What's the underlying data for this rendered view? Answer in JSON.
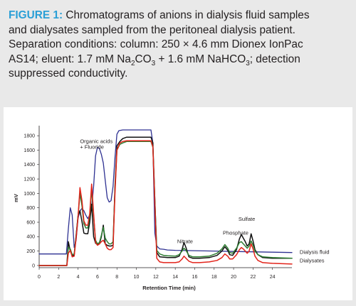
{
  "caption": {
    "label": "FIGURE 1:",
    "line1_rest": " Chromatograms of anions in dialysis fluid samples",
    "line2": "and dialysates sampled from the peritoneal dialysis patient.",
    "line3": "Separation conditions: column: 250 × 4.6 mm Dionex IonPac",
    "line4_a": "AS14; eluent: 1.7 mM Na",
    "line4_sub1": "2",
    "line4_b": "CO",
    "line4_sub2": "3",
    "line4_c": " + 1.6 mM NaHCO",
    "line4_sub3": "3",
    "line4_d": "; detection",
    "line5": "suppressed conductivity."
  },
  "colors": {
    "caption_label": "#2a9fd6",
    "panel_background": "#e9e9e9",
    "dialysis_fluid": "#2e3192",
    "black_trace": "#111111",
    "green_trace": "#2e7d32",
    "red_trace": "#e2231a"
  },
  "chart_data": {
    "type": "line",
    "title": "",
    "xlabel": "Retention Time (min)",
    "ylabel": "mV",
    "xlim": [
      0,
      26
    ],
    "ylim": [
      -30,
      1900
    ],
    "x_ticks": [
      0,
      2,
      4,
      6,
      8,
      10,
      12,
      14,
      16,
      18,
      20,
      22,
      24
    ],
    "y_ticks": [
      0,
      200,
      400,
      600,
      800,
      1000,
      1200,
      1400,
      1600,
      1800
    ],
    "grid": false,
    "annotations": [
      {
        "text": "Organic acids",
        "x": 4.2,
        "y": 1700
      },
      {
        "text": "+ Fluoride",
        "x": 4.2,
        "y": 1620
      },
      {
        "text": "Nitrate",
        "x": 14.2,
        "y": 310
      },
      {
        "text": "Phosphate",
        "x": 18.9,
        "y": 430
      },
      {
        "text": "Sulfate",
        "x": 20.5,
        "y": 620
      }
    ],
    "series_labels": [
      {
        "text": "Dialysis fluid",
        "x": 26.8,
        "y": 185
      },
      {
        "text": "Dialysates",
        "x": 26.8,
        "y": 70
      }
    ],
    "series": [
      {
        "name": "Dialysis fluid",
        "color": "#2e3192",
        "x": [
          0,
          2.8,
          3.0,
          3.2,
          3.4,
          3.6,
          3.8,
          4.0,
          4.2,
          4.4,
          4.6,
          4.8,
          5.0,
          5.2,
          5.4,
          5.6,
          5.8,
          6.0,
          6.2,
          6.4,
          6.6,
          6.8,
          7.0,
          7.2,
          7.4,
          7.6,
          7.8,
          8.0,
          8.2,
          8.4,
          8.6,
          8.8,
          9.2,
          9.6,
          10.0,
          10.5,
          11.0,
          11.5,
          11.7,
          11.9,
          12.1,
          12.4,
          12.8,
          13.2,
          14,
          16,
          18,
          20,
          22,
          24,
          26
        ],
        "y": [
          160,
          160,
          510,
          800,
          700,
          250,
          350,
          650,
          760,
          790,
          760,
          700,
          650,
          700,
          800,
          1100,
          1520,
          1640,
          1620,
          1540,
          1420,
          1180,
          940,
          880,
          900,
          1100,
          1500,
          1820,
          1870,
          1875,
          1880,
          1880,
          1880,
          1880,
          1880,
          1880,
          1880,
          1880,
          1700,
          450,
          270,
          230,
          225,
          215,
          210,
          205,
          200,
          195,
          190,
          185,
          180
        ]
      },
      {
        "name": "Dialysate (black)",
        "color": "#111111",
        "x": [
          0,
          2.85,
          3.0,
          3.2,
          3.4,
          3.6,
          3.8,
          4.0,
          4.2,
          4.4,
          4.6,
          4.8,
          5.0,
          5.2,
          5.4,
          5.6,
          5.8,
          6.0,
          6.2,
          6.4,
          6.6,
          6.8,
          7.0,
          7.2,
          7.4,
          7.6,
          7.8,
          8.0,
          8.3,
          8.6,
          9.0,
          9.5,
          10.0,
          10.5,
          11.0,
          11.5,
          11.7,
          11.9,
          12.1,
          12.4,
          12.8,
          13.2,
          14.0,
          14.4,
          14.7,
          14.9,
          15.1,
          15.4,
          15.8,
          16.5,
          17.5,
          18.3,
          18.8,
          19.1,
          19.4,
          19.6,
          19.9,
          20.3,
          20.6,
          20.8,
          21.0,
          21.2,
          21.4,
          21.6,
          21.8,
          22.0,
          22.2,
          22.5,
          23.0,
          24,
          26
        ],
        "y": [
          0,
          0,
          330,
          200,
          140,
          140,
          420,
          690,
          760,
          610,
          450,
          440,
          440,
          600,
          850,
          400,
          310,
          290,
          300,
          400,
          560,
          300,
          280,
          270,
          270,
          280,
          1100,
          1660,
          1720,
          1760,
          1780,
          1780,
          1780,
          1780,
          1780,
          1780,
          1700,
          900,
          180,
          120,
          115,
          110,
          110,
          130,
          220,
          320,
          250,
          120,
          100,
          100,
          110,
          140,
          200,
          260,
          210,
          150,
          140,
          220,
          370,
          430,
          380,
          330,
          270,
          300,
          440,
          340,
          220,
          150,
          110,
          100,
          100
        ]
      },
      {
        "name": "Dialysate (green)",
        "color": "#2e7d32",
        "x": [
          0,
          2.85,
          3.0,
          3.2,
          3.4,
          3.6,
          3.8,
          4.0,
          4.2,
          4.4,
          4.6,
          4.8,
          5.0,
          5.2,
          5.4,
          5.6,
          5.8,
          6.0,
          6.2,
          6.4,
          6.6,
          6.8,
          7.0,
          7.2,
          7.4,
          7.6,
          7.8,
          8.0,
          8.3,
          8.6,
          9.0,
          9.5,
          10.0,
          10.5,
          11.0,
          11.5,
          11.7,
          11.9,
          12.1,
          12.4,
          12.8,
          13.2,
          14.0,
          14.4,
          14.7,
          14.9,
          15.1,
          15.4,
          15.8,
          16.5,
          17.5,
          18.3,
          18.8,
          19.1,
          19.4,
          19.6,
          19.9,
          20.3,
          20.6,
          20.8,
          21.0,
          21.2,
          21.4,
          21.6,
          21.8,
          22.0,
          22.2,
          22.5,
          23.0,
          24,
          26
        ],
        "y": [
          0,
          0,
          250,
          230,
          150,
          160,
          400,
          680,
          1000,
          830,
          580,
          520,
          520,
          680,
          1060,
          680,
          350,
          300,
          320,
          420,
          530,
          380,
          330,
          300,
          300,
          330,
          1050,
          1600,
          1680,
          1700,
          1720,
          1720,
          1720,
          1720,
          1720,
          1720,
          1640,
          900,
          210,
          160,
          140,
          135,
          130,
          150,
          200,
          240,
          210,
          140,
          120,
          120,
          130,
          170,
          230,
          290,
          240,
          180,
          170,
          240,
          320,
          330,
          300,
          270,
          240,
          270,
          340,
          280,
          200,
          150,
          120,
          110,
          100
        ]
      },
      {
        "name": "Dialysate (red)",
        "color": "#e2231a",
        "x": [
          0,
          2.85,
          3.0,
          3.2,
          3.4,
          3.6,
          3.8,
          4.0,
          4.2,
          4.4,
          4.6,
          4.8,
          5.0,
          5.2,
          5.4,
          5.6,
          5.8,
          6.0,
          6.2,
          6.4,
          6.6,
          6.8,
          7.0,
          7.2,
          7.4,
          7.6,
          7.8,
          8.0,
          8.3,
          8.6,
          9.0,
          9.5,
          10.0,
          10.5,
          11.0,
          11.5,
          11.7,
          11.9,
          12.1,
          12.4,
          12.8,
          13.2,
          14.0,
          14.4,
          14.7,
          14.9,
          15.1,
          15.4,
          15.8,
          16.5,
          17.5,
          18.3,
          18.8,
          19.1,
          19.4,
          19.6,
          19.9,
          20.3,
          20.6,
          20.8,
          21.0,
          21.2,
          21.4,
          21.6,
          21.8,
          22.0,
          22.2,
          22.5,
          23.0,
          24,
          26
        ],
        "y": [
          0,
          0,
          170,
          210,
          120,
          130,
          380,
          670,
          1080,
          900,
          620,
          560,
          560,
          720,
          1130,
          720,
          320,
          280,
          300,
          330,
          350,
          300,
          240,
          220,
          220,
          250,
          1000,
          1600,
          1700,
          1720,
          1730,
          1730,
          1730,
          1730,
          1730,
          1730,
          1650,
          850,
          100,
          50,
          40,
          40,
          40,
          50,
          90,
          130,
          100,
          60,
          40,
          40,
          50,
          70,
          110,
          160,
          130,
          90,
          90,
          150,
          220,
          250,
          230,
          200,
          170,
          200,
          300,
          230,
          130,
          70,
          40,
          30,
          20
        ]
      }
    ]
  }
}
